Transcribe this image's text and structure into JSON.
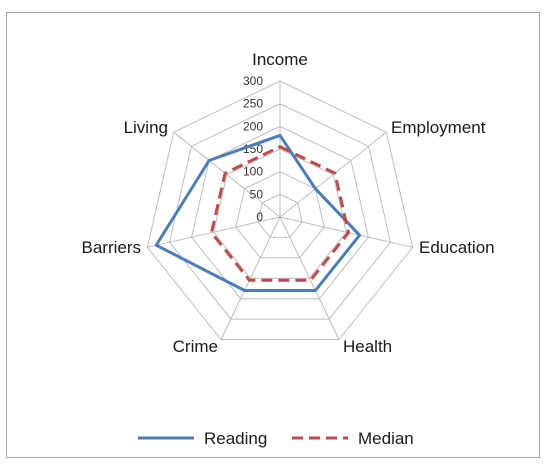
{
  "chart_data": {
    "type": "radar",
    "categories": [
      "Income",
      "Employment",
      "Education",
      "Health",
      "Crime",
      "Barriers",
      "Living"
    ],
    "rlim": [
      0,
      300
    ],
    "ticks": [
      "0",
      "50",
      "100",
      "150",
      "200",
      "250",
      "300"
    ],
    "tick_values": [
      0,
      50,
      100,
      150,
      200,
      250,
      300
    ],
    "grid": true,
    "legend_position": "bottom",
    "series": [
      {
        "name": "Reading",
        "values": [
          180,
          100,
          180,
          180,
          180,
          280,
          200
        ],
        "color": "#4a7ebb",
        "dash": "solid"
      },
      {
        "name": "Median",
        "values": [
          155,
          155,
          155,
          155,
          155,
          155,
          155
        ],
        "color": "#be4b48",
        "dash": "dashed"
      }
    ]
  }
}
